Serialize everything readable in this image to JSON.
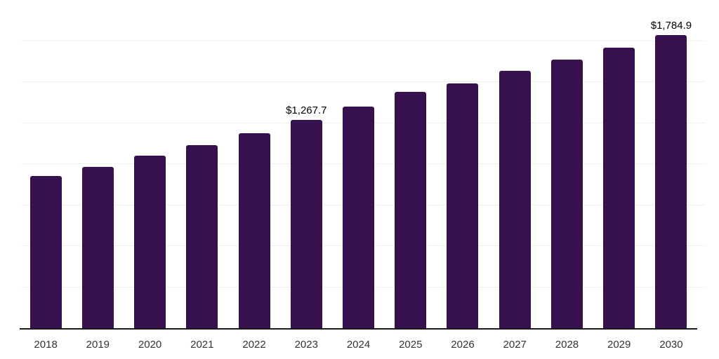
{
  "chart_data": {
    "type": "bar",
    "title": "",
    "xlabel": "",
    "ylabel": "",
    "categories": [
      "2018",
      "2019",
      "2020",
      "2021",
      "2022",
      "2023",
      "2024",
      "2025",
      "2026",
      "2027",
      "2028",
      "2029",
      "2030"
    ],
    "values": [
      926.0,
      982.7,
      1050.6,
      1116.0,
      1188.1,
      1267.7,
      1348.8,
      1440.4,
      1491.5,
      1566.6,
      1638.9,
      1710.1,
      1784.9
    ],
    "data_labels": [
      "",
      "",
      "",
      "",
      "",
      "$1,267.7",
      "",
      "",
      "",
      "",
      "",
      "",
      "$1,784.9"
    ],
    "value_prefix": "$",
    "ylim": [
      0,
      2000
    ],
    "grid_step": 250,
    "grid": "horizontal-only",
    "legend_position": "none",
    "colors": {
      "bar": "#36114e",
      "gridline": "#f0f0f0",
      "axis_line": "#1a1a1a",
      "data_label_text": "#000000",
      "tick_label_text": "#333333",
      "background": "#ffffff"
    }
  }
}
